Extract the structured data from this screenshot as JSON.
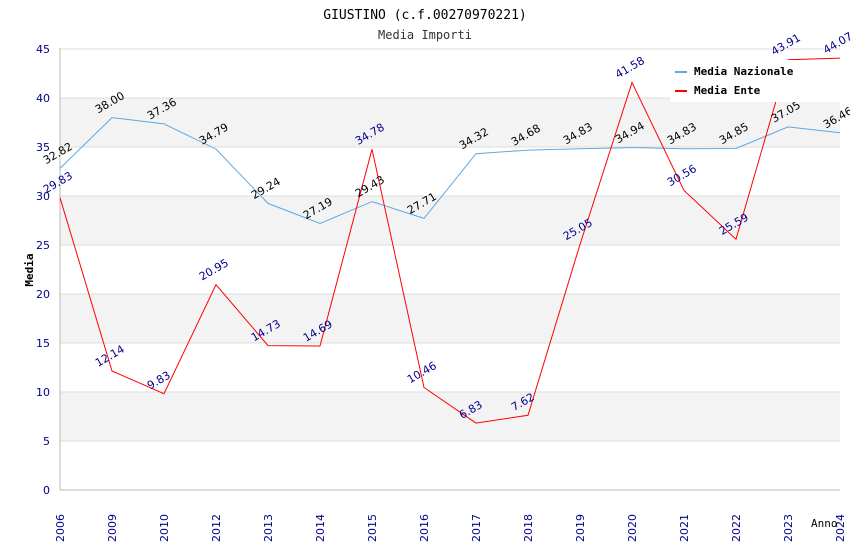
{
  "chart_data": {
    "type": "line",
    "title": "GIUSTINO (c.f.00270970221)",
    "subtitle": "Media Importi",
    "xlabel": "Anno",
    "ylabel": "Media",
    "ylim": [
      0,
      45
    ],
    "yticks": [
      "0",
      "5",
      "10",
      "15",
      "20",
      "25",
      "30",
      "35",
      "40",
      "45"
    ],
    "grid": true,
    "legend_position": "top-right",
    "categories": [
      "2006",
      "2009",
      "2010",
      "2012",
      "2013",
      "2014",
      "2015",
      "2016",
      "2017",
      "2018",
      "2019",
      "2020",
      "2021",
      "2022",
      "2023",
      "2024"
    ],
    "series": [
      {
        "name": "Media Nazionale",
        "color": "#5aa9e6",
        "label_color": "#000000",
        "values": [
          32.82,
          38.0,
          37.36,
          34.79,
          29.24,
          27.19,
          29.43,
          27.71,
          34.32,
          34.68,
          34.83,
          34.94,
          34.83,
          34.85,
          37.05,
          36.46
        ],
        "labels": [
          "32.82",
          "38.00",
          "37.36",
          "34.79",
          "29.24",
          "27.19",
          "29.43",
          "27.71",
          "34.32",
          "34.68",
          "34.83",
          "34.94",
          "34.83",
          "34.85",
          "37.05",
          "36.46"
        ]
      },
      {
        "name": "Media Ente",
        "color": "#ff0000",
        "label_color": "#00008b",
        "values": [
          29.83,
          12.14,
          9.83,
          20.95,
          14.73,
          14.69,
          34.78,
          10.46,
          6.83,
          7.62,
          25.05,
          41.58,
          30.56,
          25.59,
          43.91,
          44.07
        ],
        "labels": [
          "29.83",
          "12.14",
          "9.83",
          "20.95",
          "14.73",
          "14.69",
          "34.78",
          "10.46",
          "6.83",
          "7.62",
          "25.05",
          "41.58",
          "30.56",
          "25.59",
          "43.91",
          "44.07"
        ]
      }
    ]
  }
}
